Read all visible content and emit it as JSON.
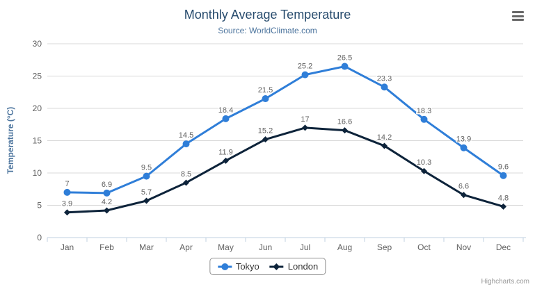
{
  "chart": {
    "title": "Monthly Average Temperature",
    "subtitle": "Source: WorldClimate.com",
    "credit": "Highcharts.com"
  },
  "icons": {
    "context_menu": "hamburger-icon"
  },
  "chart_data": {
    "type": "line",
    "title": "Monthly Average Temperature",
    "subtitle": "Source: WorldClimate.com",
    "categories": [
      "Jan",
      "Feb",
      "Mar",
      "Apr",
      "May",
      "Jun",
      "Jul",
      "Aug",
      "Sep",
      "Oct",
      "Nov",
      "Dec"
    ],
    "series": [
      {
        "name": "Tokyo",
        "color": "#2f7ed8",
        "marker": "circle",
        "values": [
          7,
          6.9,
          9.5,
          14.5,
          18.4,
          21.5,
          25.2,
          26.5,
          23.3,
          18.3,
          13.9,
          9.6
        ]
      },
      {
        "name": "London",
        "color": "#0d233a",
        "marker": "diamond",
        "values": [
          3.9,
          4.2,
          5.7,
          8.5,
          11.9,
          15.2,
          17,
          16.6,
          14.2,
          10.3,
          6.6,
          4.8
        ]
      }
    ],
    "xlabel": "",
    "ylabel": "Temperature (°C)",
    "ylim": [
      0,
      30
    ],
    "yticks": [
      0,
      5,
      10,
      15,
      20,
      25,
      30
    ],
    "grid": true,
    "legend_position": "bottom",
    "colors": {
      "title": "#274b6d",
      "subtitle": "#4d759e",
      "axis_label": "#606060",
      "data_label": "#606060",
      "gridline": "#d8d8d8",
      "axis_line": "#c0d0e0",
      "legend_text": "#333333",
      "legend_border": "#909090",
      "credits": "#999999"
    }
  }
}
